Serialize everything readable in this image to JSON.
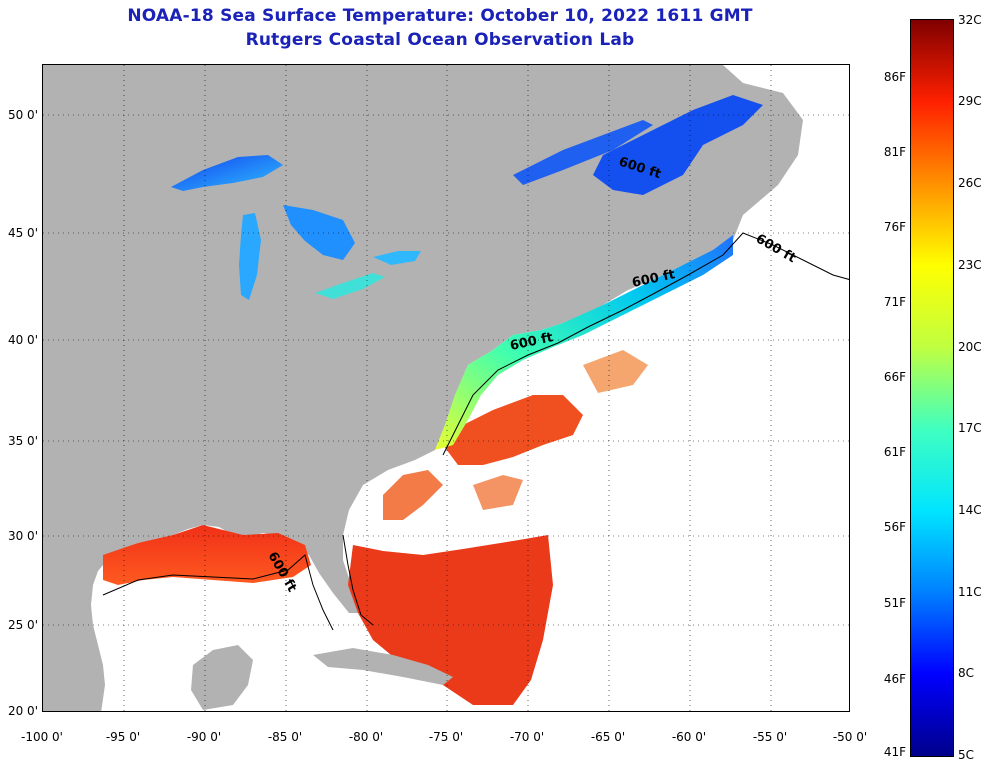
{
  "title": {
    "line1": "NOAA-18 Sea Surface Temperature:  October 10, 2022 1611 GMT",
    "line2": "Rutgers Coastal Ocean Observation Lab"
  },
  "axes": {
    "lat_labels": [
      "50 0'",
      "45 0'",
      "40 0'",
      "35 0'",
      "30 0'",
      "25 0'",
      "20 0'"
    ],
    "lon_labels": [
      "-100 0'",
      "-95 0'",
      "-90 0'",
      "-85 0'",
      "-80 0'",
      "-75 0'",
      "-70 0'",
      "-65 0'",
      "-60 0'",
      "-55 0'",
      "-50 0'"
    ]
  },
  "contour_label": "600 ft",
  "colorbar": {
    "celsius_labels": [
      "32C",
      "29C",
      "26C",
      "23C",
      "20C",
      "17C",
      "14C",
      "11C",
      "8C",
      "5C"
    ],
    "fahrenheit_labels": [
      "86F",
      "81F",
      "76F",
      "71F",
      "66F",
      "61F",
      "56F",
      "51F",
      "46F",
      "41F"
    ],
    "color_stops": [
      "#00008b",
      "#0000ff",
      "#0080ff",
      "#00e5ff",
      "#40ffc0",
      "#c0ff40",
      "#ffff00",
      "#ff9000",
      "#ff2000",
      "#800000"
    ]
  },
  "colors": {
    "land": "#b2b2b2",
    "no_data": "#ffffff",
    "title": "#1a22b8"
  }
}
